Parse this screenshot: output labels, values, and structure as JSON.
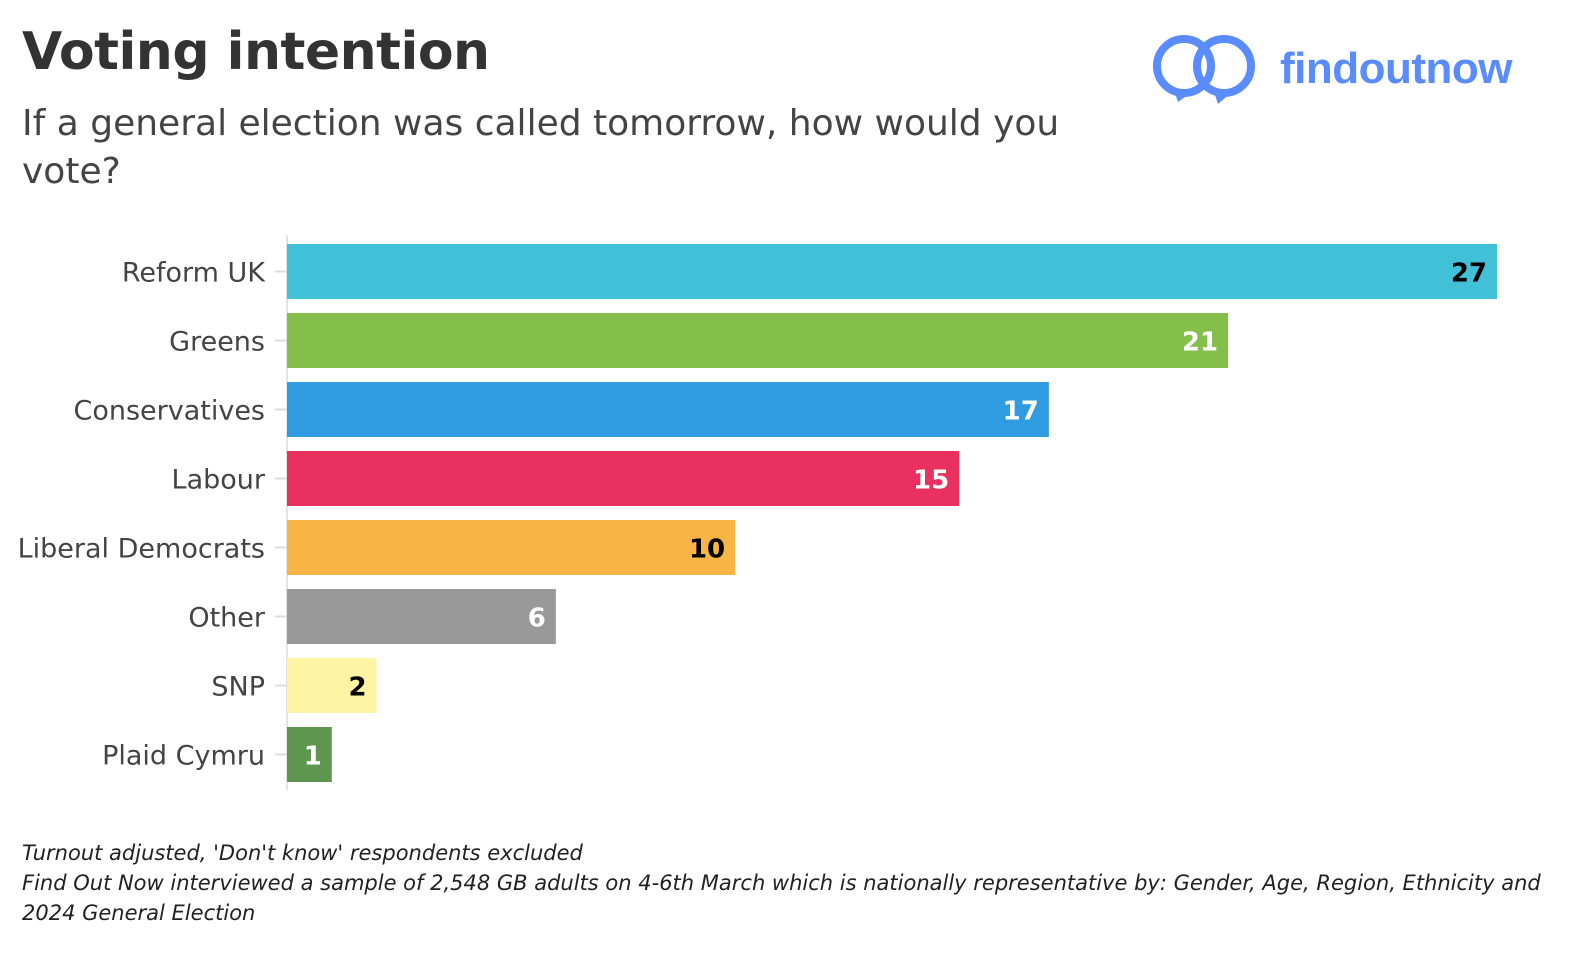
{
  "title": "Voting intention",
  "subtitle": "If a general election was called tomorrow, how would you vote?",
  "logo": {
    "text": "findoutnow",
    "color": "#5b8cff",
    "icon": "two-speech-rings-icon"
  },
  "chart_data": {
    "type": "bar",
    "orientation": "horizontal",
    "categories": [
      "Reform UK",
      "Greens",
      "Conservatives",
      "Labour",
      "Liberal Democrats",
      "Other",
      "SNP",
      "Plaid Cymru"
    ],
    "values": [
      27,
      21,
      17,
      15,
      10,
      6,
      2,
      1
    ],
    "colors": [
      "#40c1d8",
      "#84bf4b",
      "#2f9be0",
      "#e9305f",
      "#f8b445",
      "#999999",
      "#fdf5a3",
      "#5e9650"
    ],
    "label_colors": [
      "#000000",
      "#ffffff",
      "#ffffff",
      "#ffffff",
      "#000000",
      "#ffffff",
      "#000000",
      "#ffffff"
    ],
    "xlim": [
      0,
      27
    ],
    "grid": false,
    "data_labels": true
  },
  "footnotes": [
    "Turnout adjusted, 'Don't know' respondents excluded",
    "Find Out Now interviewed a sample of 2,548 GB adults on 4-6th March which is nationally representative by: Gender, Age, Region, Ethnicity and 2024 General Election"
  ]
}
